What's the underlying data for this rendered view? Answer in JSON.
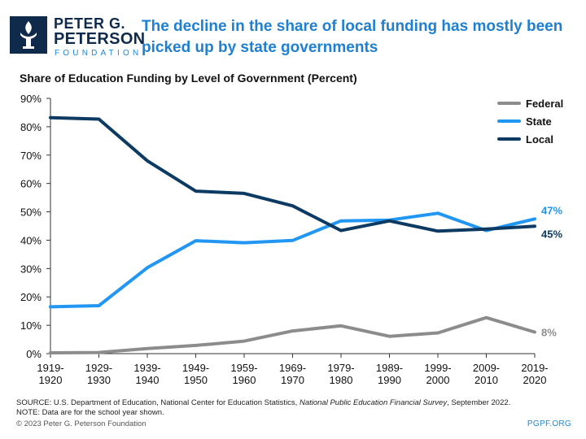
{
  "logo": {
    "line1": "PETER G.",
    "line2": "PETERSON",
    "line3": "FOUNDATION"
  },
  "headline": "The decline in the share of local funding has mostly been picked up by state governments",
  "footer": {
    "source_prefix": "SOURCE: U.S. Department of Education, National Center for Education Statistics, ",
    "source_italic": "National Public Education Financial Survey",
    "source_suffix": ", September 2022.",
    "note": "NOTE: Data are for the school year shown.",
    "copyright": "© 2023 Peter G. Peterson Foundation",
    "site": "PGPF.ORG"
  },
  "colors": {
    "federal": "#8c8c8c",
    "state": "#2196f3",
    "local": "#0d3a63",
    "headline": "#1f7fd0",
    "brand_navy": "#0f2a4a"
  },
  "chart_data": {
    "type": "line",
    "title": "Share of Education Funding by Level of Government (Percent)",
    "xlabel": "",
    "ylabel": "",
    "ylim": [
      0,
      90
    ],
    "yticks": [
      "0%",
      "10%",
      "20%",
      "30%",
      "40%",
      "50%",
      "60%",
      "70%",
      "80%",
      "90%"
    ],
    "categories": [
      [
        "1919-",
        "1920"
      ],
      [
        "1929-",
        "1930"
      ],
      [
        "1939-",
        "1940"
      ],
      [
        "1949-",
        "1950"
      ],
      [
        "1959-",
        "1960"
      ],
      [
        "1969-",
        "1970"
      ],
      [
        "1979-",
        "1980"
      ],
      [
        "1989-",
        "1990"
      ],
      [
        "1999-",
        "2000"
      ],
      [
        "2009-",
        "2010"
      ],
      [
        "2019-",
        "2020"
      ]
    ],
    "grid": false,
    "legend": "top-right",
    "series": [
      {
        "name": "Federal",
        "key": "federal",
        "values": [
          0.3,
          0.4,
          1.8,
          2.9,
          4.4,
          8.0,
          9.8,
          6.1,
          7.3,
          12.7,
          7.6
        ],
        "end_label": "8%"
      },
      {
        "name": "State",
        "key": "state",
        "values": [
          16.5,
          16.9,
          30.3,
          39.8,
          39.1,
          39.9,
          46.8,
          47.1,
          49.5,
          43.4,
          47.5
        ],
        "end_label": "47%"
      },
      {
        "name": "Local",
        "key": "local",
        "values": [
          83.2,
          82.7,
          68.0,
          57.3,
          56.5,
          52.1,
          43.4,
          46.8,
          43.2,
          43.9,
          44.9
        ],
        "end_label": "45%"
      }
    ]
  }
}
